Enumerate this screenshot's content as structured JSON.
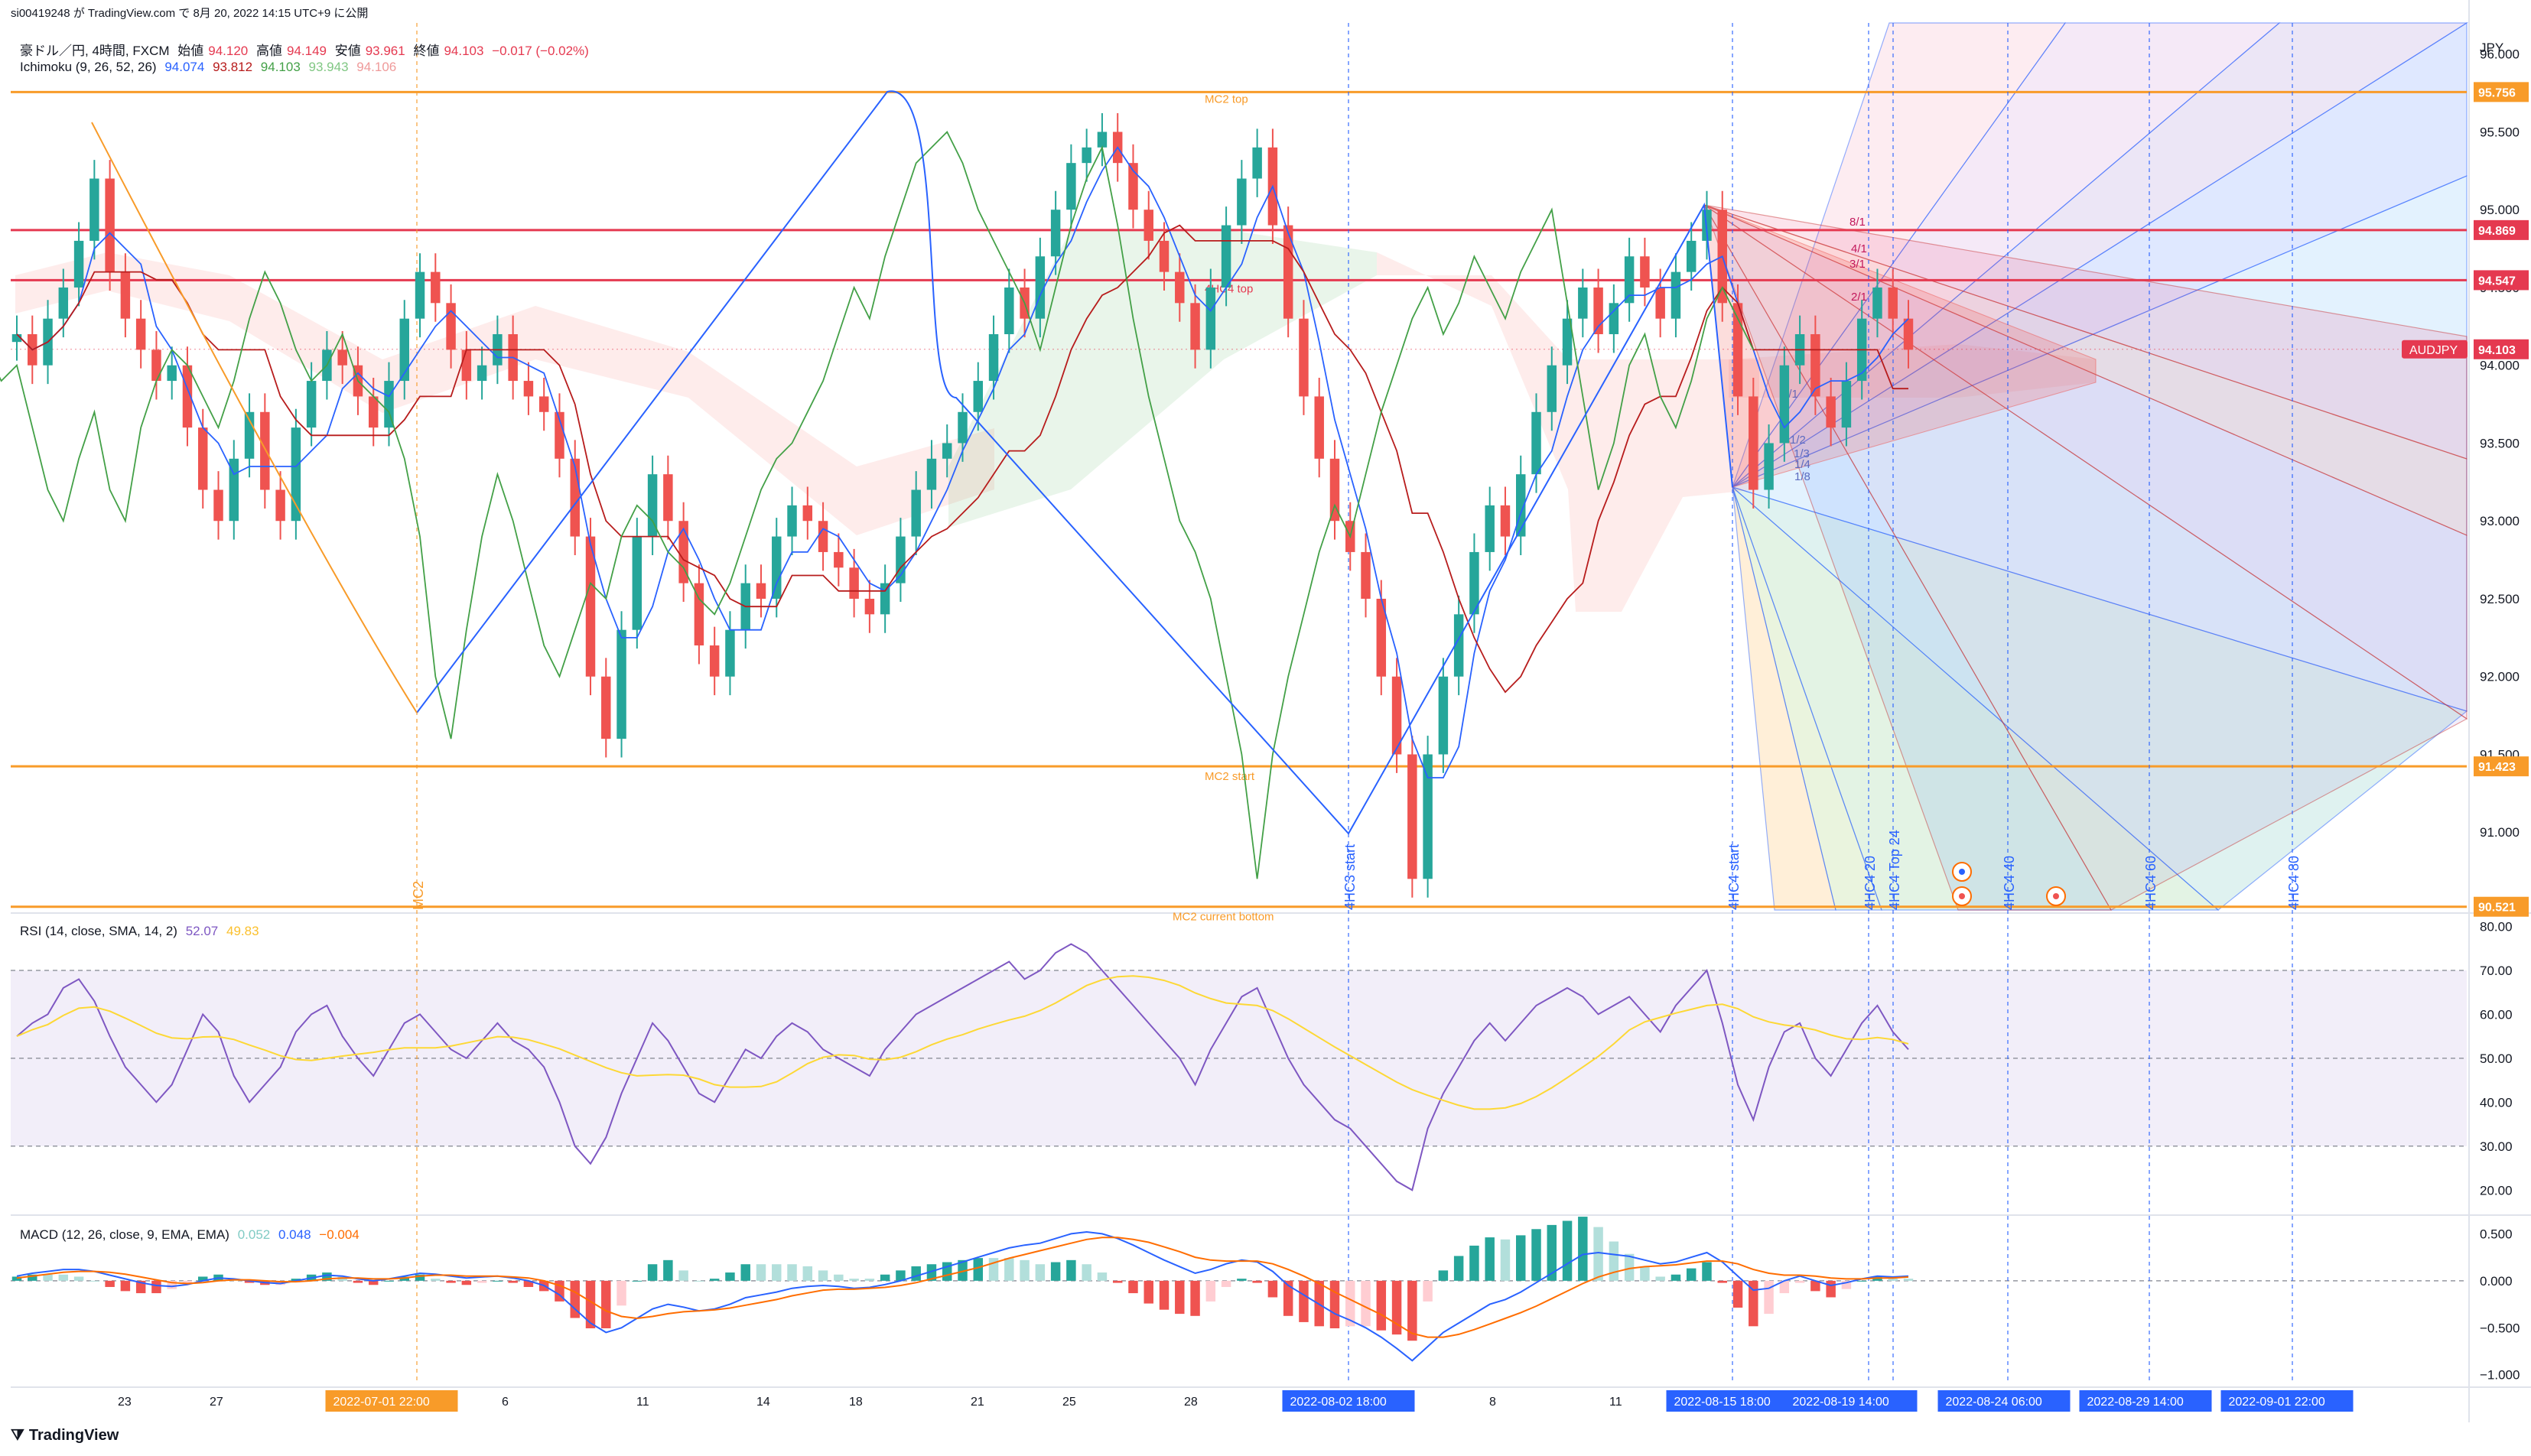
{
  "header": {
    "publisher": "si00419248 が TradingView.com で 8月 20, 2022 14:15 UTC+9 に公開"
  },
  "main_legend": {
    "symbol": "豪ドル／円, 4時間, FXCM",
    "open_label": "始値",
    "open": "94.120",
    "high_label": "高値",
    "high": "94.149",
    "low_label": "安値",
    "low": "93.961",
    "close_label": "終値",
    "close": "94.103",
    "change": "−0.017 (−0.02%)"
  },
  "ichimoku_legend": {
    "name": "Ichimoku (9, 26, 52, 26)",
    "v1": "94.074",
    "v2": "93.812",
    "v3": "94.103",
    "v4": "93.943",
    "v5": "94.106"
  },
  "rsi_legend": {
    "name": "RSI (14, close, SMA, 14, 2)",
    "v1": "52.07",
    "v2": "49.83"
  },
  "macd_legend": {
    "name": "MACD (12, 26, close, 9, EMA, EMA)",
    "v1": "0.052",
    "v2": "0.048",
    "v3": "−0.004"
  },
  "currency": "JPY",
  "symbol_tag": "AUDJPY",
  "brand": "TradingView",
  "colors": {
    "up": "#26a69a",
    "down": "#ef5350",
    "orange": "#f89b29",
    "red_line": "#e53950",
    "blue": "#2962ff",
    "rsi": "#7e57c2",
    "rsi_ma": "#fdd835",
    "macd": "#2962ff",
    "signal": "#ff6d00"
  },
  "chart_data": [
    {
      "type": "candlestick",
      "title": "豪ドル／円, 4時間, FXCM",
      "ylabel": "JPY",
      "ylim": [
        90.5,
        96.2
      ],
      "y_ticks": [
        "96.000",
        "95.500",
        "95.000",
        "94.500",
        "94.000",
        "93.500",
        "93.000",
        "92.500",
        "92.000",
        "91.500",
        "91.000"
      ],
      "price_tags": [
        {
          "value": "95.756",
          "label": "MC2 top",
          "color": "#f89b29"
        },
        {
          "value": "94.869",
          "label": "",
          "color": "#e53950"
        },
        {
          "value": "94.547",
          "label": "4HC4 top",
          "color": "#e53950"
        },
        {
          "value": "94.103",
          "label": "AUDJPY",
          "color": "#e53950"
        },
        {
          "value": "91.423",
          "label": "MC2 start",
          "color": "#f89b29"
        },
        {
          "value": "90.521",
          "label": "MC2 current bottom",
          "color": "#f89b29"
        }
      ],
      "x_ticks": [
        "23",
        "27",
        "2022-07-01  22:00",
        "6",
        "11",
        "14",
        "18",
        "21",
        "25",
        "28",
        "2022-08-02  18:00",
        "8",
        "11",
        "2022-08-15  18:00",
        "2022-08-19  14:00",
        "2022-08-24  06:00",
        "2022-08-29  14:00",
        "2022-09-01  22:00"
      ],
      "vertical_markers": [
        "MC2",
        "4HC3 start",
        "4HC4 start",
        "4HC4 20",
        "4HC4 Top 24",
        "4HC4 40",
        "4HC4 60",
        "4HC4 80"
      ],
      "fan_labels": [
        "8/1",
        "4/1",
        "3/1",
        "2/1",
        "1/1",
        "1/2",
        "1/3",
        "1/4",
        "1/8"
      ],
      "close": [
        94.2,
        94.0,
        94.3,
        94.5,
        94.8,
        95.2,
        94.6,
        94.3,
        94.1,
        93.9,
        94.0,
        93.6,
        93.2,
        93.0,
        93.4,
        93.7,
        93.2,
        93.0,
        93.6,
        93.9,
        94.1,
        94.0,
        93.8,
        93.6,
        93.9,
        94.3,
        94.6,
        94.4,
        94.1,
        93.9,
        94.0,
        94.2,
        93.9,
        93.8,
        93.7,
        93.4,
        92.9,
        92.0,
        91.6,
        92.3,
        92.9,
        93.3,
        93.0,
        92.6,
        92.2,
        92.0,
        92.3,
        92.6,
        92.5,
        92.9,
        93.1,
        93.0,
        92.8,
        92.7,
        92.5,
        92.4,
        92.6,
        92.9,
        93.2,
        93.4,
        93.5,
        93.7,
        93.9,
        94.2,
        94.5,
        94.3,
        94.7,
        95.0,
        95.3,
        95.4,
        95.5,
        95.3,
        95.0,
        94.8,
        94.6,
        94.4,
        94.1,
        94.5,
        94.9,
        95.2,
        95.4,
        94.9,
        94.3,
        93.8,
        93.4,
        93.0,
        92.8,
        92.5,
        92.0,
        91.5,
        90.7,
        91.5,
        92.0,
        92.4,
        92.8,
        93.1,
        92.9,
        93.3,
        93.7,
        94.0,
        94.3,
        94.5,
        94.2,
        94.4,
        94.7,
        94.5,
        94.3,
        94.6,
        94.8,
        95.0,
        94.4,
        93.8,
        93.2,
        93.5,
        94.0,
        94.2,
        93.8,
        93.6,
        93.9,
        94.3,
        94.5,
        94.3,
        94.1
      ],
      "rsi": {
        "ylim": [
          15,
          82
        ],
        "y_ticks": [
          "80.00",
          "70.00",
          "60.00",
          "50.00",
          "40.00",
          "30.00",
          "20.00"
        ],
        "band": [
          30,
          70
        ],
        "values": [
          55,
          58,
          60,
          66,
          68,
          63,
          55,
          48,
          44,
          40,
          44,
          52,
          60,
          56,
          46,
          40,
          44,
          48,
          56,
          60,
          62,
          55,
          50,
          46,
          52,
          58,
          60,
          56,
          52,
          50,
          54,
          58,
          54,
          52,
          48,
          40,
          30,
          26,
          32,
          42,
          50,
          58,
          54,
          48,
          42,
          40,
          46,
          52,
          50,
          55,
          58,
          56,
          52,
          50,
          48,
          46,
          52,
          56,
          60,
          62,
          64,
          66,
          68,
          70,
          72,
          68,
          70,
          74,
          76,
          74,
          70,
          66,
          62,
          58,
          54,
          50,
          44,
          52,
          58,
          64,
          66,
          58,
          50,
          44,
          40,
          36,
          34,
          30,
          26,
          22,
          20,
          34,
          42,
          48,
          54,
          58,
          54,
          58,
          62,
          64,
          66,
          64,
          60,
          62,
          64,
          60,
          56,
          62,
          66,
          70,
          58,
          44,
          36,
          48,
          56,
          58,
          50,
          46,
          52,
          58,
          62,
          56,
          52
        ]
      },
      "macd": {
        "ylim": [
          -1.1,
          0.65
        ],
        "y_ticks": [
          "0.500",
          "0.000",
          "−0.500",
          "−1.000"
        ],
        "values": [
          0.05,
          0.08,
          0.1,
          0.12,
          0.12,
          0.1,
          0.06,
          0.02,
          -0.02,
          -0.05,
          -0.06,
          -0.04,
          0.0,
          0.03,
          0.02,
          0.0,
          -0.02,
          -0.03,
          0.0,
          0.03,
          0.06,
          0.05,
          0.02,
          0.0,
          0.02,
          0.05,
          0.08,
          0.07,
          0.05,
          0.03,
          0.04,
          0.05,
          0.03,
          0.0,
          -0.05,
          -0.15,
          -0.3,
          -0.45,
          -0.55,
          -0.5,
          -0.4,
          -0.3,
          -0.25,
          -0.28,
          -0.32,
          -0.3,
          -0.25,
          -0.18,
          -0.15,
          -0.12,
          -0.08,
          -0.06,
          -0.05,
          -0.06,
          -0.08,
          -0.07,
          -0.04,
          0.0,
          0.05,
          0.1,
          0.15,
          0.2,
          0.25,
          0.3,
          0.35,
          0.38,
          0.4,
          0.45,
          0.5,
          0.52,
          0.5,
          0.45,
          0.38,
          0.3,
          0.22,
          0.15,
          0.08,
          0.12,
          0.18,
          0.22,
          0.2,
          0.1,
          -0.05,
          -0.15,
          -0.25,
          -0.35,
          -0.42,
          -0.5,
          -0.6,
          -0.72,
          -0.85,
          -0.7,
          -0.55,
          -0.45,
          -0.35,
          -0.25,
          -0.2,
          -0.12,
          -0.02,
          0.08,
          0.18,
          0.28,
          0.3,
          0.28,
          0.26,
          0.22,
          0.18,
          0.2,
          0.25,
          0.3,
          0.2,
          0.05,
          -0.1,
          -0.08,
          0.0,
          0.05,
          0.0,
          -0.05,
          -0.02,
          0.02,
          0.05,
          0.04,
          0.05
        ],
        "signal": [
          0.03,
          0.05,
          0.07,
          0.09,
          0.1,
          0.1,
          0.09,
          0.07,
          0.04,
          0.01,
          -0.02,
          -0.03,
          -0.02,
          0.0,
          0.01,
          0.01,
          0.0,
          -0.01,
          -0.01,
          0.0,
          0.02,
          0.03,
          0.03,
          0.02,
          0.02,
          0.03,
          0.05,
          0.06,
          0.06,
          0.05,
          0.05,
          0.05,
          0.04,
          0.03,
          0.0,
          -0.05,
          -0.12,
          -0.22,
          -0.32,
          -0.38,
          -0.4,
          -0.38,
          -0.35,
          -0.33,
          -0.32,
          -0.31,
          -0.29,
          -0.26,
          -0.23,
          -0.2,
          -0.16,
          -0.13,
          -0.1,
          -0.09,
          -0.09,
          -0.08,
          -0.07,
          -0.05,
          -0.02,
          0.02,
          0.06,
          0.1,
          0.14,
          0.19,
          0.24,
          0.28,
          0.32,
          0.36,
          0.4,
          0.44,
          0.46,
          0.46,
          0.44,
          0.41,
          0.36,
          0.31,
          0.25,
          0.22,
          0.21,
          0.21,
          0.21,
          0.18,
          0.12,
          0.05,
          -0.03,
          -0.12,
          -0.2,
          -0.28,
          -0.36,
          -0.46,
          -0.56,
          -0.6,
          -0.6,
          -0.57,
          -0.52,
          -0.46,
          -0.4,
          -0.34,
          -0.27,
          -0.19,
          -0.11,
          -0.03,
          0.04,
          0.09,
          0.13,
          0.15,
          0.16,
          0.17,
          0.19,
          0.21,
          0.21,
          0.18,
          0.12,
          0.08,
          0.06,
          0.06,
          0.05,
          0.03,
          0.02,
          0.02,
          0.03,
          0.03,
          0.04
        ]
      }
    }
  ]
}
